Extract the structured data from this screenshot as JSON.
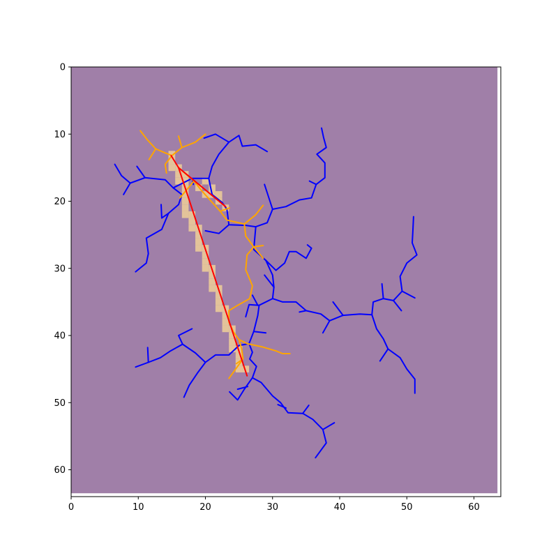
{
  "chart_data": {
    "type": "line",
    "title": "",
    "xlabel": "",
    "ylabel": "",
    "xlim": [
      0,
      64
    ],
    "ylim": [
      64,
      0
    ],
    "y_inverted": true,
    "grid": false,
    "x_ticks": [
      0,
      10,
      20,
      30,
      40,
      50,
      60
    ],
    "y_ticks": [
      0,
      10,
      20,
      30,
      40,
      50,
      60
    ],
    "background_image": {
      "extent": [
        0,
        63.5,
        63.5,
        0
      ],
      "color": "#a07fa8"
    },
    "colors": {
      "blue_network": "#0000ff",
      "orange_network": "#ffa500",
      "red_path": "#ff0000",
      "path_cells": "#e3c39a"
    },
    "path_cells": [
      [
        15,
        13
      ],
      [
        15,
        14
      ],
      [
        15,
        15
      ],
      [
        16,
        15
      ],
      [
        16,
        16
      ],
      [
        16,
        17
      ],
      [
        17,
        16
      ],
      [
        17,
        17
      ],
      [
        17,
        18
      ],
      [
        17,
        19
      ],
      [
        17,
        20
      ],
      [
        17,
        21
      ],
      [
        17,
        22
      ],
      [
        18,
        22
      ],
      [
        18,
        23
      ],
      [
        18,
        24
      ],
      [
        19,
        24
      ],
      [
        19,
        25
      ],
      [
        19,
        26
      ],
      [
        19,
        27
      ],
      [
        20,
        27
      ],
      [
        20,
        28
      ],
      [
        20,
        29
      ],
      [
        20,
        30
      ],
      [
        21,
        30
      ],
      [
        21,
        31
      ],
      [
        21,
        32
      ],
      [
        21,
        33
      ],
      [
        22,
        33
      ],
      [
        22,
        34
      ],
      [
        22,
        35
      ],
      [
        22,
        36
      ],
      [
        23,
        36
      ],
      [
        23,
        37
      ],
      [
        23,
        38
      ],
      [
        23,
        39
      ],
      [
        24,
        39
      ],
      [
        24,
        40
      ],
      [
        24,
        41
      ],
      [
        24,
        42
      ],
      [
        25,
        42
      ],
      [
        25,
        43
      ],
      [
        25,
        44
      ],
      [
        25,
        45
      ],
      [
        26,
        45
      ],
      [
        20,
        17
      ],
      [
        21,
        18
      ],
      [
        21,
        19
      ],
      [
        22,
        19
      ],
      [
        22,
        20
      ],
      [
        23,
        21
      ],
      [
        19,
        18
      ],
      [
        20,
        19
      ]
    ],
    "red_path": [
      [
        14.9,
        13.2
      ],
      [
        16.0,
        15.0
      ],
      [
        26.2,
        46.0
      ]
    ],
    "red_branch": [
      [
        16.0,
        15.0
      ],
      [
        23.0,
        20.8
      ]
    ],
    "blue_segments": [
      [
        [
          6.5,
          14.5
        ],
        [
          7.5,
          16.2
        ],
        [
          8.8,
          17.3
        ],
        [
          11.0,
          16.5
        ],
        [
          14.0,
          16.8
        ],
        [
          15.2,
          18.0
        ],
        [
          18.0,
          16.6
        ],
        [
          20.5,
          16.6
        ],
        [
          21.0,
          14.8
        ],
        [
          22.0,
          13.0
        ],
        [
          23.5,
          11.2
        ],
        [
          25.0,
          10.2
        ],
        [
          25.5,
          11.8
        ],
        [
          27.5,
          11.6
        ],
        [
          29.2,
          12.6
        ]
      ],
      [
        [
          19.8,
          10.6
        ],
        [
          21.5,
          10.0
        ],
        [
          23.5,
          11.2
        ]
      ],
      [
        [
          7.8,
          19.0
        ],
        [
          8.8,
          17.3
        ]
      ],
      [
        [
          9.8,
          14.8
        ],
        [
          11.0,
          16.5
        ]
      ],
      [
        [
          15.2,
          18.0
        ],
        [
          16.5,
          19.0
        ],
        [
          16.0,
          20.5
        ],
        [
          14.5,
          21.8
        ],
        [
          13.5,
          24.2
        ],
        [
          11.2,
          25.5
        ],
        [
          11.5,
          27.8
        ],
        [
          11.2,
          29.2
        ],
        [
          9.6,
          30.5
        ]
      ],
      [
        [
          13.4,
          20.5
        ],
        [
          13.5,
          22.5
        ],
        [
          14.5,
          21.8
        ]
      ],
      [
        [
          18.0,
          16.6
        ],
        [
          18.2,
          17.5
        ]
      ],
      [
        [
          20.5,
          16.6
        ],
        [
          21.0,
          19.0
        ],
        [
          22.5,
          20.2
        ],
        [
          23.2,
          21.2
        ],
        [
          23.5,
          23.5
        ],
        [
          26.0,
          23.6
        ],
        [
          27.5,
          23.8
        ],
        [
          29.2,
          23.2
        ],
        [
          30.0,
          21.2
        ],
        [
          32.0,
          20.8
        ],
        [
          34.0,
          19.8
        ],
        [
          35.8,
          19.5
        ],
        [
          36.5,
          17.5
        ],
        [
          37.8,
          16.5
        ],
        [
          37.8,
          14.3
        ],
        [
          36.6,
          13.0
        ],
        [
          38.0,
          12.0
        ],
        [
          37.6,
          10.5
        ],
        [
          37.3,
          9.1
        ]
      ],
      [
        [
          35.5,
          17.0
        ],
        [
          36.5,
          17.5
        ]
      ],
      [
        [
          28.8,
          17.5
        ],
        [
          30.0,
          21.2
        ]
      ],
      [
        [
          20.0,
          24.4
        ],
        [
          22.0,
          24.8
        ],
        [
          23.5,
          23.5
        ]
      ],
      [
        [
          27.5,
          23.8
        ],
        [
          27.2,
          27.2
        ],
        [
          29.0,
          28.8
        ],
        [
          30.5,
          30.3
        ],
        [
          31.8,
          29.2
        ],
        [
          32.5,
          27.5
        ],
        [
          33.5,
          27.5
        ],
        [
          35.0,
          28.5
        ],
        [
          35.8,
          27.0
        ],
        [
          35.2,
          26.5
        ]
      ],
      [
        [
          29.0,
          28.8
        ],
        [
          30.0,
          31.0
        ],
        [
          30.2,
          32.8
        ],
        [
          30.0,
          34.5
        ]
      ],
      [
        [
          28.8,
          31.0
        ],
        [
          30.2,
          32.8
        ]
      ],
      [
        [
          30.0,
          34.5
        ],
        [
          28.0,
          35.5
        ],
        [
          27.8,
          37.0
        ],
        [
          27.2,
          39.4
        ],
        [
          29.0,
          39.6
        ]
      ],
      [
        [
          30.0,
          34.5
        ],
        [
          31.5,
          35.0
        ],
        [
          33.5,
          35.0
        ],
        [
          35.0,
          36.3
        ],
        [
          37.2,
          36.8
        ],
        [
          38.5,
          37.8
        ],
        [
          40.5,
          37.0
        ],
        [
          43.0,
          36.8
        ],
        [
          44.8,
          36.9
        ],
        [
          45.0,
          35.0
        ],
        [
          46.5,
          34.5
        ],
        [
          48.0,
          34.8
        ],
        [
          49.3,
          33.4
        ],
        [
          49.0,
          31.2
        ],
        [
          50.0,
          29.2
        ],
        [
          51.5,
          28.0
        ],
        [
          50.8,
          26.2
        ],
        [
          50.9,
          24.5
        ],
        [
          51.0,
          22.3
        ]
      ],
      [
        [
          28.0,
          35.5
        ],
        [
          26.5,
          35.4
        ],
        [
          26.0,
          37.2
        ]
      ],
      [
        [
          27.0,
          34.0
        ],
        [
          27.8,
          35.5
        ]
      ],
      [
        [
          34.0,
          36.5
        ],
        [
          35.0,
          36.3
        ]
      ],
      [
        [
          38.5,
          37.8
        ],
        [
          37.5,
          39.6
        ]
      ],
      [
        [
          40.5,
          37.0
        ],
        [
          39.0,
          35.0
        ]
      ],
      [
        [
          46.5,
          34.5
        ],
        [
          46.3,
          32.3
        ]
      ],
      [
        [
          48.0,
          34.8
        ],
        [
          49.2,
          36.3
        ]
      ],
      [
        [
          49.3,
          33.4
        ],
        [
          51.2,
          34.4
        ]
      ],
      [
        [
          44.8,
          36.9
        ],
        [
          45.5,
          39.0
        ],
        [
          46.5,
          40.5
        ],
        [
          47.2,
          42.0
        ],
        [
          49.0,
          43.3
        ],
        [
          50.0,
          45.0
        ],
        [
          51.2,
          46.5
        ],
        [
          51.2,
          48.6
        ]
      ],
      [
        [
          47.2,
          42.0
        ],
        [
          46.0,
          43.8
        ]
      ],
      [
        [
          27.2,
          39.4
        ],
        [
          26.5,
          41.2
        ],
        [
          25.0,
          41.5
        ],
        [
          23.5,
          42.9
        ],
        [
          21.5,
          42.9
        ],
        [
          20.0,
          44.0
        ],
        [
          18.5,
          42.6
        ],
        [
          16.6,
          41.3
        ],
        [
          14.8,
          42.3
        ],
        [
          13.3,
          43.3
        ],
        [
          11.5,
          44.0
        ],
        [
          9.6,
          44.7
        ]
      ],
      [
        [
          16.6,
          41.3
        ],
        [
          16.0,
          40.0
        ],
        [
          18.0,
          39.0
        ]
      ],
      [
        [
          11.4,
          41.8
        ],
        [
          11.5,
          44.0
        ]
      ],
      [
        [
          20.0,
          44.0
        ],
        [
          18.8,
          45.6
        ],
        [
          17.6,
          47.4
        ],
        [
          16.8,
          49.2
        ]
      ],
      [
        [
          26.5,
          41.2
        ],
        [
          27.0,
          42.5
        ],
        [
          26.6,
          43.5
        ],
        [
          27.6,
          44.6
        ],
        [
          27.0,
          46.3
        ],
        [
          25.8,
          48.0
        ],
        [
          24.8,
          49.6
        ],
        [
          23.6,
          48.4
        ]
      ],
      [
        [
          27.0,
          46.3
        ],
        [
          28.3,
          47.0
        ],
        [
          30.0,
          49.0
        ],
        [
          31.2,
          50.0
        ],
        [
          32.3,
          51.5
        ],
        [
          34.5,
          51.6
        ],
        [
          36.0,
          52.5
        ],
        [
          37.5,
          54.0
        ],
        [
          38.0,
          56.0
        ],
        [
          36.4,
          58.2
        ]
      ],
      [
        [
          30.8,
          50.3
        ],
        [
          32.0,
          50.8
        ]
      ],
      [
        [
          34.5,
          51.6
        ],
        [
          35.4,
          50.4
        ]
      ],
      [
        [
          37.5,
          54.0
        ],
        [
          39.2,
          53.0
        ]
      ],
      [
        [
          24.8,
          48.0
        ],
        [
          26.3,
          47.6
        ]
      ]
    ],
    "orange_segments": [
      [
        [
          10.3,
          9.5
        ],
        [
          11.3,
          10.8
        ],
        [
          12.6,
          12.2
        ],
        [
          14.0,
          12.8
        ]
      ],
      [
        [
          11.6,
          13.8
        ],
        [
          12.6,
          12.2
        ]
      ],
      [
        [
          14.0,
          12.8
        ],
        [
          15.0,
          13.2
        ],
        [
          16.5,
          12.0
        ],
        [
          18.5,
          11.2
        ],
        [
          20.0,
          10.0
        ]
      ],
      [
        [
          16.0,
          10.3
        ],
        [
          16.5,
          12.0
        ]
      ],
      [
        [
          15.0,
          13.2
        ],
        [
          14.0,
          14.5
        ],
        [
          14.2,
          15.8
        ]
      ],
      [
        [
          16.0,
          15.0
        ],
        [
          18.3,
          17.0
        ],
        [
          19.5,
          18.5
        ],
        [
          22.2,
          21.5
        ],
        [
          23.2,
          22.8
        ],
        [
          25.8,
          23.4
        ],
        [
          27.5,
          22.0
        ],
        [
          28.6,
          20.6
        ]
      ],
      [
        [
          18.3,
          17.0
        ],
        [
          16.2,
          19.5
        ]
      ],
      [
        [
          22.2,
          21.5
        ],
        [
          23.6,
          21.0
        ]
      ],
      [
        [
          25.8,
          23.4
        ],
        [
          26.0,
          25.2
        ],
        [
          27.2,
          26.8
        ],
        [
          28.6,
          26.6
        ]
      ],
      [
        [
          27.2,
          26.8
        ],
        [
          28.6,
          28.5
        ]
      ],
      [
        [
          27.2,
          26.8
        ],
        [
          26.2,
          28.0
        ],
        [
          26.0,
          30.2
        ],
        [
          27.0,
          32.6
        ],
        [
          26.6,
          34.5
        ],
        [
          24.8,
          35.5
        ],
        [
          23.5,
          36.3
        ],
        [
          23.5,
          38.0
        ],
        [
          24.2,
          39.5
        ],
        [
          25.0,
          40.6
        ],
        [
          26.2,
          41.2
        ],
        [
          28.5,
          41.7
        ],
        [
          30.5,
          42.3
        ],
        [
          31.5,
          42.7
        ],
        [
          32.6,
          42.7
        ]
      ],
      [
        [
          25.0,
          40.6
        ],
        [
          25.4,
          42.0
        ],
        [
          25.6,
          43.5
        ],
        [
          24.5,
          45.0
        ],
        [
          23.5,
          46.4
        ]
      ],
      [
        [
          25.6,
          43.5
        ],
        [
          24.6,
          44.2
        ]
      ]
    ]
  }
}
